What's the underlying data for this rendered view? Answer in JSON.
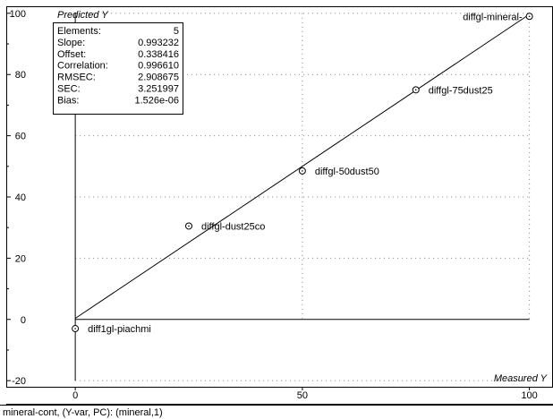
{
  "chart_data": {
    "type": "scatter",
    "xlabel": "Measured Y",
    "ylabel": "Predicted Y",
    "xlim": [
      -15,
      105
    ],
    "ylim": [
      -22,
      102
    ],
    "x_ticks": [
      0,
      50,
      100
    ],
    "y_ticks": [
      -20,
      0,
      20,
      40,
      60,
      80,
      100
    ],
    "grid": true,
    "points": [
      {
        "label": "diff1gl-piachmi",
        "x": 0,
        "y": -3
      },
      {
        "label": "diffgl-dust25co",
        "x": 25,
        "y": 30.5
      },
      {
        "label": "diffgl-50dust50",
        "x": 50,
        "y": 48.5
      },
      {
        "label": "diffgl-75dust25",
        "x": 75,
        "y": 75
      },
      {
        "label": "diffgl-mineral-",
        "x": 100,
        "y": 99
      }
    ],
    "regression": {
      "slope": 0.993232,
      "offset": 0.338416
    }
  },
  "stats": [
    {
      "name": "Elements:",
      "value": "5"
    },
    {
      "name": "Slope:",
      "value": "0.993232"
    },
    {
      "name": "Offset:",
      "value": "0.338416"
    },
    {
      "name": "Correlation:",
      "value": "0.996610"
    },
    {
      "name": "RMSEC:",
      "value": "2.908675"
    },
    {
      "name": "SEC:",
      "value": "3.251997"
    },
    {
      "name": "Bias:",
      "value": "1.526e-06"
    }
  ],
  "status_bar": {
    "text": "mineral-cont, (Y-var, PC): (mineral,1)"
  },
  "colors": {
    "line": "#000000",
    "grid": "#808080",
    "background": "#ffffff"
  }
}
